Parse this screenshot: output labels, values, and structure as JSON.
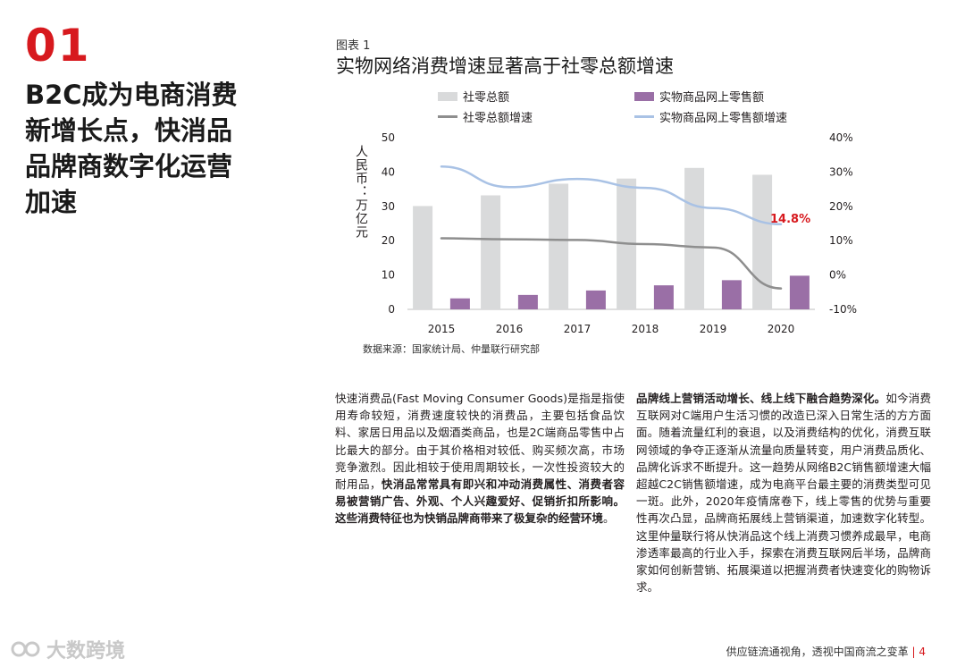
{
  "section": {
    "number": "01",
    "title": "B2C成为电商消费新增长点，快消品品牌商数字化运营加速"
  },
  "figure": {
    "label": "图表 1",
    "title": "实物网络消费增速显著高于社零总额增速",
    "source": "数据来源：国家统计局、仲量联行研究部"
  },
  "chart_data": {
    "type": "bar",
    "categories": [
      "2015",
      "2016",
      "2017",
      "2018",
      "2019",
      "2020"
    ],
    "series": [
      {
        "name": "社零总额",
        "kind": "bar",
        "axis": "left",
        "color": "#d9dadb",
        "values": [
          30.1,
          33.2,
          36.6,
          38.1,
          41.2,
          39.2
        ]
      },
      {
        "name": "实物商品网上零售额",
        "kind": "bar",
        "axis": "left",
        "color": "#9a6fa6",
        "values": [
          3.2,
          4.2,
          5.5,
          7.0,
          8.5,
          9.8
        ]
      },
      {
        "name": "社零总额增速",
        "kind": "line",
        "axis": "right",
        "color": "#8e8e8e",
        "values": [
          10.7,
          10.4,
          10.2,
          9.0,
          8.0,
          -3.9
        ]
      },
      {
        "name": "实物商品网上零售额增速",
        "kind": "line",
        "axis": "right",
        "color": "#a9c2e5",
        "values": [
          31.6,
          25.6,
          28.0,
          25.4,
          19.5,
          14.8
        ]
      }
    ],
    "ylabel": "人民币：万亿元",
    "ylim": [
      0,
      50
    ],
    "yticks": [
      0,
      10,
      20,
      30,
      40,
      50
    ],
    "y2lim": [
      -10,
      40
    ],
    "y2ticks": [
      "-10%",
      "0%",
      "10%",
      "20%",
      "30%",
      "40%"
    ],
    "annotation": "14.8%",
    "annotation_color": "#d7191e",
    "grid": false,
    "legend_position": "top"
  },
  "paragraphs": {
    "left": [
      {
        "text": "快速消费品(Fast Moving Consumer Goods)是指是指使用寿命较短，消费速度较快的消费品，主要包括食品饮料、家居日用品以及烟酒类商品，也是2C端商品零售中占比最大的部分。由于其价格相对较低、购买频次高，市场竞争激烈。因此相较于使用周期较长，一次性投资较大的耐用品，",
        "bold": false
      },
      {
        "text": "快消品常常具有即兴和冲动消费属性、消费者容易被营销广告、外观、个人兴趣爱好、促销折扣所影响。这些消费特征也为快销品牌商带来了极复杂的经营环境",
        "bold": true
      },
      {
        "text": "。",
        "bold": false
      }
    ],
    "right": [
      {
        "text": "品牌线上营销活动增长、线上线下融合趋势深化。",
        "bold": true
      },
      {
        "text": "如今消费互联网对C端用户生活习惯的改造已深入日常生活的方方面面。随着流量红利的衰退，以及消费结构的优化，消费互联网领域的争夺正逐渐从流量向质量转变，用户消费品质化、品牌化诉求不断提升。这一趋势从网络B2C销售额增速大幅超越C2C销售额增速，成为电商平台最主要的消费类型可见一斑。此外，2020年疫情席卷下，线上零售的优势与重要性再次凸显，品牌商拓展线上营销渠道，加速数字化转型。这里仲量联行将从快消品这个线上消费习惯养成最早，电商渗透率最高的行业入手，探索在消费互联网后半场，品牌商家如何创新营销、拓展渠道以把握消费者快速变化的购物诉求。",
        "bold": false
      }
    ]
  },
  "footer": {
    "text": "供应链流通视角，透视中国商流之变革",
    "separator": "|",
    "page": "4"
  },
  "watermark": {
    "text": "大数跨境"
  }
}
